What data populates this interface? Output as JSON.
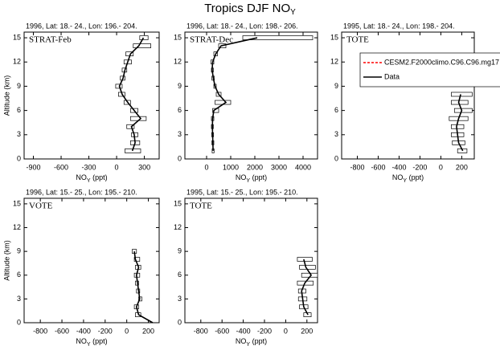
{
  "title": {
    "text": "Tropics DJF NO",
    "sub": "Y"
  },
  "chart_data": [
    {
      "type": "line",
      "subtitle": "1996, Lat: 18.- 24., Lon: 196.- 204.",
      "label": "STRAT-Feb",
      "ylabel": "Altitude (km)",
      "xlabel": {
        "text": "NO",
        "sub": "Y",
        "unit": " (ppt)"
      },
      "xlim": [
        -1000,
        460
      ],
      "xticks": [
        -900,
        -600,
        -300,
        0,
        300
      ],
      "ylim": [
        0,
        15.7
      ],
      "yticks": [
        0,
        3,
        6,
        9,
        12,
        15
      ],
      "series": [
        {
          "name": "Data",
          "color": "#000000",
          "altitude": [
            1,
            2,
            3,
            4,
            5,
            6,
            7,
            8,
            9,
            10,
            11,
            12,
            13,
            14,
            15
          ],
          "values": [
            170,
            200,
            190,
            160,
            260,
            190,
            120,
            60,
            30,
            70,
            90,
            120,
            150,
            240,
            290
          ],
          "low": [
            90,
            150,
            160,
            110,
            150,
            150,
            80,
            20,
            -10,
            40,
            60,
            80,
            100,
            180,
            250
          ],
          "high": [
            260,
            250,
            230,
            190,
            320,
            230,
            150,
            90,
            60,
            90,
            110,
            160,
            180,
            370,
            340
          ]
        }
      ]
    },
    {
      "type": "line",
      "subtitle": "1996, Lat: 18.- 24., Lon: 198.- 206.",
      "label": "STRAT-Dec",
      "xlabel": {
        "text": "NO",
        "sub": "Y",
        "unit": " (ppt)"
      },
      "xlim": [
        -900,
        4600
      ],
      "xticks": [
        0,
        1000,
        2000,
        3000,
        4000
      ],
      "ylim": [
        0,
        15.7
      ],
      "yticks": [
        0,
        3,
        6,
        9,
        12,
        15
      ],
      "series": [
        {
          "name": "Data",
          "color": "#000000",
          "altitude": [
            1,
            2,
            3,
            4,
            5,
            6,
            7,
            8,
            9,
            10,
            11,
            12,
            13,
            14,
            15
          ],
          "values": [
            270,
            260,
            250,
            240,
            250,
            300,
            800,
            500,
            350,
            280,
            230,
            250,
            380,
            600,
            2100
          ],
          "low": [
            230,
            220,
            210,
            200,
            200,
            250,
            350,
            400,
            300,
            220,
            200,
            180,
            300,
            500,
            1500
          ],
          "high": [
            310,
            300,
            290,
            280,
            300,
            500,
            1000,
            600,
            400,
            320,
            280,
            300,
            450,
            800,
            4400
          ]
        }
      ]
    },
    {
      "type": "line",
      "subtitle": "1995, Lat: 18.- 24., Lon: 198.- 204.",
      "label": "TOTE",
      "xlabel": {
        "text": "NO",
        "sub": "Y",
        "unit": " (ppt)"
      },
      "xlim": [
        -950,
        320
      ],
      "xticks": [
        -800,
        -600,
        -400,
        -200,
        0,
        200
      ],
      "ylim": [
        0,
        15.7
      ],
      "yticks": [
        0,
        3,
        6,
        9,
        12,
        15
      ],
      "legend": [
        {
          "name": "CESM2.F2000climo.C96.C96.mg17",
          "color": "#ff0000",
          "dashed": true
        },
        {
          "name": "Data",
          "color": "#000000",
          "dashed": false
        }
      ],
      "series": [
        {
          "name": "Data",
          "color": "#000000",
          "altitude": [
            1,
            2,
            3,
            4,
            5,
            6,
            7,
            8
          ],
          "values": [
            210,
            170,
            160,
            150,
            170,
            200,
            170,
            190
          ],
          "low": [
            160,
            110,
            100,
            100,
            80,
            130,
            100,
            100
          ],
          "high": [
            250,
            230,
            220,
            220,
            260,
            300,
            260,
            300
          ]
        }
      ]
    },
    {
      "type": "line",
      "subtitle": "1996, Lat: 15.- 25., Lon: 195.- 210.",
      "label": "VOTE",
      "ylabel": "Altitude (km)",
      "xlabel": {
        "text": "NO",
        "sub": "Y",
        "unit": " (ppt)"
      },
      "xlim": [
        -950,
        300
      ],
      "xticks": [
        -800,
        -600,
        -400,
        -200,
        0,
        200
      ],
      "ylim": [
        0,
        15.7
      ],
      "yticks": [
        0,
        3,
        6,
        9,
        12,
        15
      ],
      "series": [
        {
          "name": "Data",
          "color": "#000000",
          "altitude": [
            0,
            1,
            2,
            3,
            4,
            5,
            6,
            7,
            8,
            9
          ],
          "values": [
            240,
            110,
            90,
            120,
            110,
            100,
            90,
            110,
            80,
            70
          ],
          "low": [
            null,
            80,
            70,
            110,
            90,
            80,
            70,
            80,
            70,
            50
          ],
          "high": [
            null,
            130,
            110,
            140,
            120,
            110,
            120,
            130,
            120,
            90
          ]
        }
      ]
    },
    {
      "type": "line",
      "subtitle": "1995, Lat: 15.- 25., Lon: 195.- 210.",
      "label": "TOTE",
      "xlabel": {
        "text": "NO",
        "sub": "Y",
        "unit": " (ppt)"
      },
      "xlim": [
        -950,
        300
      ],
      "xticks": [
        -800,
        -600,
        -400,
        -200,
        0,
        200
      ],
      "ylim": [
        0,
        15.7
      ],
      "yticks": [
        0,
        3,
        6,
        9,
        12,
        15
      ],
      "series": [
        {
          "name": "Data",
          "color": "#000000",
          "altitude": [
            1,
            2,
            3,
            4,
            5,
            6,
            7,
            8
          ],
          "values": [
            210,
            170,
            160,
            150,
            180,
            240,
            190,
            170
          ],
          "low": [
            170,
            130,
            120,
            120,
            110,
            150,
            130,
            110
          ],
          "high": [
            240,
            210,
            200,
            190,
            260,
            300,
            280,
            250
          ]
        }
      ]
    }
  ]
}
